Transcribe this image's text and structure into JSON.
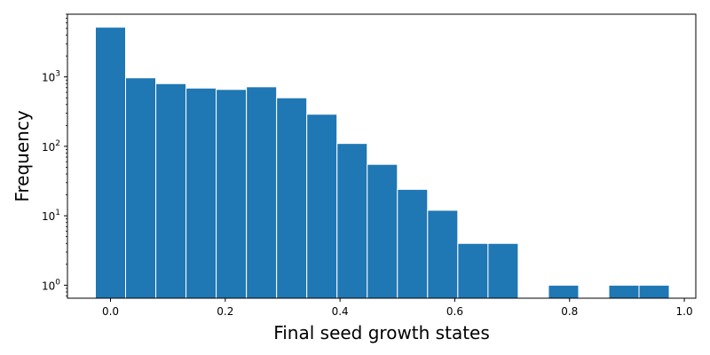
{
  "chart_data": {
    "type": "bar",
    "bar_color": "#1f77b4",
    "xlabel": "Final seed growth states",
    "ylabel": "Frequency",
    "yscale": "log",
    "xlim": [
      -0.075,
      1.02
    ],
    "ylim": [
      0.65,
      8000
    ],
    "bin_width": 0.0526,
    "bins": [
      {
        "x": 0.0,
        "value": 5200
      },
      {
        "x": 0.0526,
        "value": 970
      },
      {
        "x": 0.1053,
        "value": 800
      },
      {
        "x": 0.1579,
        "value": 690
      },
      {
        "x": 0.2105,
        "value": 660
      },
      {
        "x": 0.2632,
        "value": 720
      },
      {
        "x": 0.3158,
        "value": 500
      },
      {
        "x": 0.3684,
        "value": 290
      },
      {
        "x": 0.4211,
        "value": 110
      },
      {
        "x": 0.4737,
        "value": 55
      },
      {
        "x": 0.5263,
        "value": 24
      },
      {
        "x": 0.5789,
        "value": 12
      },
      {
        "x": 0.6316,
        "value": 4
      },
      {
        "x": 0.6842,
        "value": 4
      },
      {
        "x": 0.7895,
        "value": 1
      },
      {
        "x": 0.8947,
        "value": 1
      },
      {
        "x": 0.9474,
        "value": 1
      }
    ],
    "x_ticks": [
      {
        "value": 0.0,
        "label": "0.0"
      },
      {
        "value": 0.2,
        "label": "0.2"
      },
      {
        "value": 0.4,
        "label": "0.4"
      },
      {
        "value": 0.6,
        "label": "0.6"
      },
      {
        "value": 0.8,
        "label": "0.8"
      },
      {
        "value": 1.0,
        "label": "1.0"
      }
    ],
    "y_ticks": [
      {
        "value": 1,
        "base": "10",
        "exp": "0"
      },
      {
        "value": 10,
        "base": "10",
        "exp": "1"
      },
      {
        "value": 100,
        "base": "10",
        "exp": "2"
      },
      {
        "value": 1000,
        "base": "10",
        "exp": "3"
      }
    ]
  }
}
